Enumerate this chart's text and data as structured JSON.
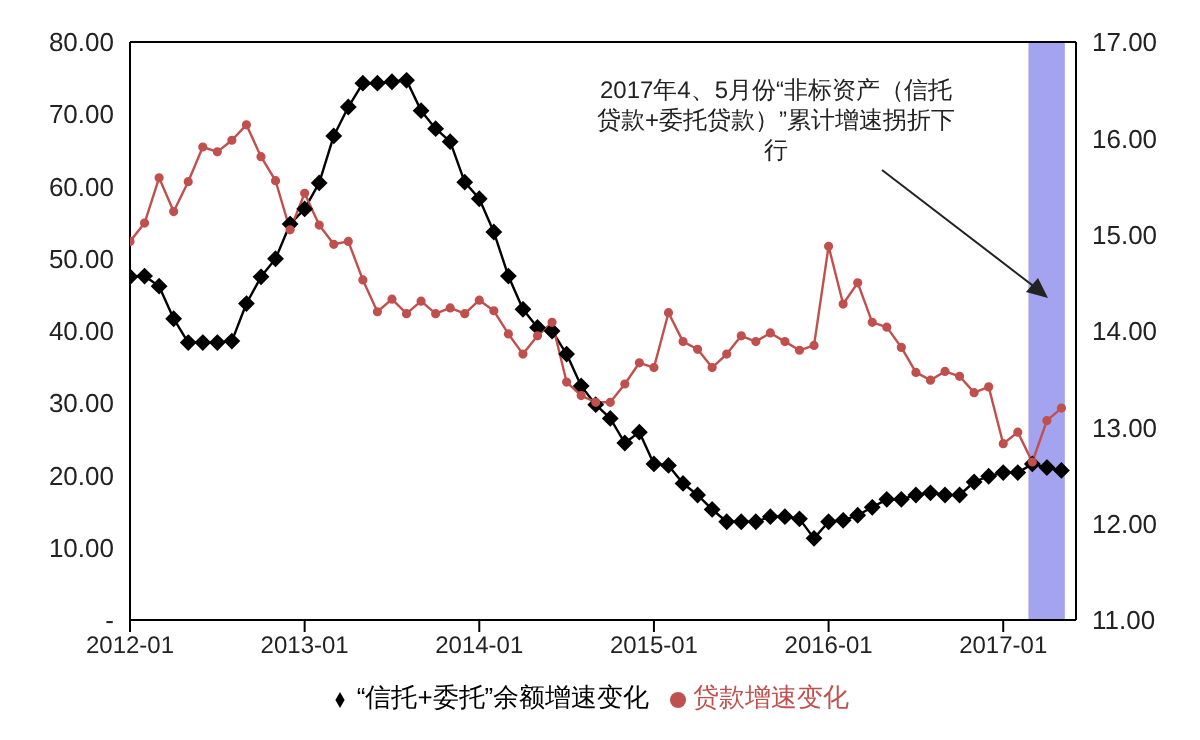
{
  "chart_data": {
    "type": "line",
    "xlim": [
      "2012-01",
      "2017-06"
    ],
    "xticks": [
      "2012-01",
      "2013-01",
      "2014-01",
      "2015-01",
      "2016-01",
      "2017-01"
    ],
    "ylim": [
      0,
      80
    ],
    "yticks": [
      {
        "value": 0,
        "label": "-"
      },
      {
        "value": 10,
        "label": "10.00"
      },
      {
        "value": 20,
        "label": "20.00"
      },
      {
        "value": 30,
        "label": "30.00"
      },
      {
        "value": 40,
        "label": "40.00"
      },
      {
        "value": 50,
        "label": "50.00"
      },
      {
        "value": 60,
        "label": "60.00"
      },
      {
        "value": 70,
        "label": "70.00"
      },
      {
        "value": 80,
        "label": "80.00"
      }
    ],
    "y2lim": [
      11,
      17
    ],
    "y2ticks": [
      {
        "value": 11,
        "label": "11.00"
      },
      {
        "value": 12,
        "label": "12.00"
      },
      {
        "value": 13,
        "label": "13.00"
      },
      {
        "value": 14,
        "label": "14.00"
      },
      {
        "value": 15,
        "label": "15.00"
      },
      {
        "value": 16,
        "label": "16.00"
      },
      {
        "value": 17,
        "label": "17.00"
      }
    ],
    "grid": false,
    "legend": "bottom",
    "series": [
      {
        "name": "“信托+委托”余额增速变化",
        "color": "#000000",
        "marker": "diamond",
        "values": [
          47.5,
          47.6,
          46.2,
          41.7,
          38.4,
          38.4,
          38.4,
          38.6,
          43.8,
          47.5,
          50.0,
          54.8,
          56.9,
          60.5,
          67.0,
          71.0,
          74.3,
          74.3,
          74.5,
          74.7,
          70.5,
          68.0,
          66.2,
          60.6,
          58.3,
          53.7,
          47.6,
          43.0,
          40.5,
          40.0,
          36.8,
          32.4,
          29.8,
          27.9,
          24.5,
          26.0,
          21.6,
          21.4,
          18.9,
          17.3,
          15.3,
          13.6,
          13.6,
          13.6,
          14.3,
          14.3,
          14.0,
          11.3,
          13.6,
          13.8,
          14.5,
          15.6,
          16.7,
          16.7,
          17.3,
          17.6,
          17.3,
          17.3,
          19.1,
          19.9,
          20.4,
          20.4,
          21.6,
          21.1,
          20.7
        ]
      },
      {
        "name": "贷款增速变化",
        "color": "#c0504d",
        "marker": "circle",
        "axis": "y2",
        "values": [
          14.93,
          15.12,
          15.59,
          15.24,
          15.55,
          15.91,
          15.86,
          15.98,
          16.14,
          15.81,
          15.56,
          15.05,
          15.43,
          15.1,
          14.9,
          14.93,
          14.53,
          14.2,
          14.33,
          14.18,
          14.31,
          14.18,
          14.24,
          14.18,
          14.32,
          14.21,
          13.97,
          13.76,
          13.95,
          14.09,
          13.47,
          13.33,
          13.26,
          13.26,
          13.45,
          13.67,
          13.62,
          14.19,
          13.89,
          13.81,
          13.62,
          13.76,
          13.95,
          13.89,
          13.98,
          13.89,
          13.8,
          13.85,
          14.88,
          14.28,
          14.5,
          14.09,
          14.04,
          13.83,
          13.57,
          13.49,
          13.58,
          13.53,
          13.36,
          13.42,
          12.83,
          12.95,
          12.64,
          13.07,
          13.2
        ]
      }
    ],
    "x": [
      "2012-01",
      "2012-02",
      "2012-03",
      "2012-04",
      "2012-05",
      "2012-06",
      "2012-07",
      "2012-08",
      "2012-09",
      "2012-10",
      "2012-11",
      "2012-12",
      "2013-01",
      "2013-02",
      "2013-03",
      "2013-04",
      "2013-05",
      "2013-06",
      "2013-07",
      "2013-08",
      "2013-09",
      "2013-10",
      "2013-11",
      "2013-12",
      "2014-01",
      "2014-02",
      "2014-03",
      "2014-04",
      "2014-05",
      "2014-06",
      "2014-07",
      "2014-08",
      "2014-09",
      "2014-10",
      "2014-11",
      "2014-12",
      "2015-01",
      "2015-02",
      "2015-03",
      "2015-04",
      "2015-05",
      "2015-06",
      "2015-07",
      "2015-08",
      "2015-09",
      "2015-10",
      "2015-11",
      "2015-12",
      "2016-01",
      "2016-02",
      "2016-03",
      "2016-04",
      "2016-05",
      "2016-06",
      "2016-07",
      "2016-08",
      "2016-09",
      "2016-10",
      "2016-11",
      "2016-12",
      "2017-01",
      "2017-02",
      "2017-03",
      "2017-04",
      "2017-05"
    ],
    "bands": [
      {
        "axis": "x",
        "from": "2017-02-23",
        "to": "2017-05-08",
        "color": "#9999ee"
      }
    ],
    "annotations": [
      "2017年4、5月份“非标资产（信托贷款+委托贷款）”累计增速拐折下行"
    ]
  }
}
